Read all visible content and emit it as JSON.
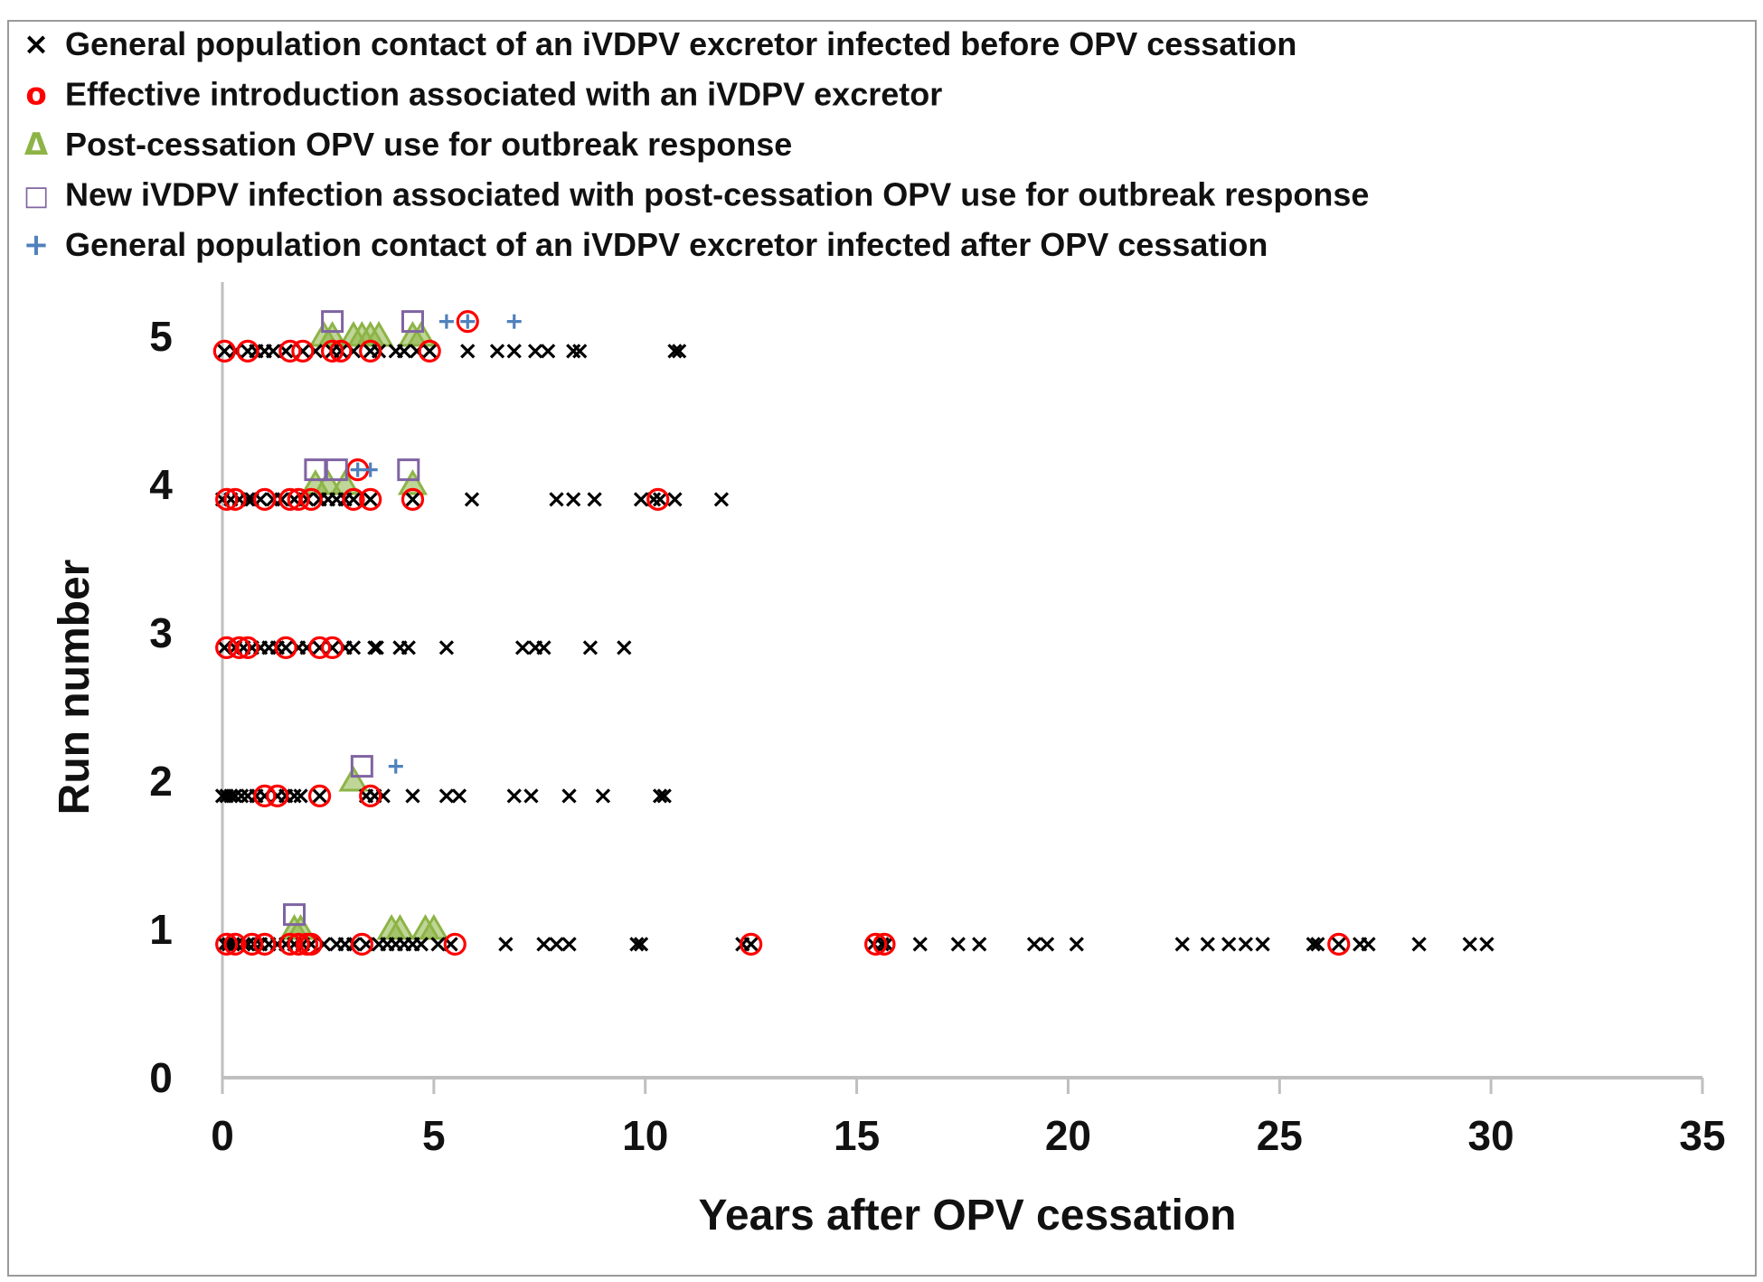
{
  "chart_data": {
    "type": "scatter",
    "title": "",
    "xlabel": "Years after OPV cessation",
    "ylabel": "Run number",
    "xlim": [
      0,
      35
    ],
    "ylim": [
      0,
      5
    ],
    "x_ticks": [
      "0",
      "5",
      "10",
      "15",
      "20",
      "25",
      "30",
      "35"
    ],
    "y_ticks": [
      "0",
      "1",
      "2",
      "3",
      "4",
      "5"
    ],
    "grid": false,
    "legend_position": "top",
    "legend": [
      {
        "key": "contact_before",
        "symbol": "×",
        "color": "#000000",
        "label": "General population contact of an iVDPV excretor infected before OPV cessation"
      },
      {
        "key": "introduction",
        "symbol": "o",
        "color": "#ff0000",
        "label": "Effective introduction associated with an iVDPV excretor"
      },
      {
        "key": "opv_use",
        "symbol": "Δ",
        "color": "#8db446",
        "label": "Post-cessation OPV use for outbreak response"
      },
      {
        "key": "new_ivdpv",
        "symbol": "□",
        "color": "#8064a2",
        "label": "New iVDPV infection associated with post-cessation OPV use for outbreak response"
      },
      {
        "key": "contact_after",
        "symbol": "+",
        "color": "#4f81bd",
        "label": "General population contact of an iVDPV excretor infected after OPV cessation"
      }
    ],
    "series": [
      {
        "name": "General population contact of an iVDPV excretor infected before OPV cessation",
        "key": "contact_before",
        "marker": "x",
        "color": "#000000",
        "points": [
          [
            0.05,
            0.9
          ],
          [
            0.15,
            0.9
          ],
          [
            0.25,
            0.9
          ],
          [
            0.35,
            0.9
          ],
          [
            0.5,
            0.9
          ],
          [
            0.6,
            0.9
          ],
          [
            0.75,
            0.9
          ],
          [
            0.9,
            0.9
          ],
          [
            1.1,
            0.9
          ],
          [
            1.3,
            0.9
          ],
          [
            1.5,
            0.9
          ],
          [
            1.7,
            0.9
          ],
          [
            1.9,
            0.9
          ],
          [
            2.1,
            0.9
          ],
          [
            2.4,
            0.9
          ],
          [
            2.7,
            0.9
          ],
          [
            2.9,
            0.9
          ],
          [
            3.1,
            0.9
          ],
          [
            3.4,
            0.9
          ],
          [
            3.7,
            0.9
          ],
          [
            3.9,
            0.9
          ],
          [
            4.1,
            0.9
          ],
          [
            4.3,
            0.9
          ],
          [
            4.5,
            0.9
          ],
          [
            4.7,
            0.9
          ],
          [
            5.1,
            0.9
          ],
          [
            5.4,
            0.9
          ],
          [
            6.7,
            0.9
          ],
          [
            7.6,
            0.9
          ],
          [
            7.9,
            0.9
          ],
          [
            8.2,
            0.9
          ],
          [
            9.8,
            0.9
          ],
          [
            9.9,
            0.9
          ],
          [
            12.3,
            0.9
          ],
          [
            12.5,
            0.9
          ],
          [
            15.4,
            0.9
          ],
          [
            15.6,
            0.9
          ],
          [
            15.7,
            0.9
          ],
          [
            16.5,
            0.9
          ],
          [
            17.4,
            0.9
          ],
          [
            17.9,
            0.9
          ],
          [
            19.2,
            0.9
          ],
          [
            19.5,
            0.9
          ],
          [
            20.2,
            0.9
          ],
          [
            22.7,
            0.9
          ],
          [
            23.3,
            0.9
          ],
          [
            23.8,
            0.9
          ],
          [
            24.2,
            0.9
          ],
          [
            24.6,
            0.9
          ],
          [
            25.8,
            0.9
          ],
          [
            25.9,
            0.9
          ],
          [
            26.4,
            0.9
          ],
          [
            26.9,
            0.9
          ],
          [
            27.1,
            0.9
          ],
          [
            28.3,
            0.9
          ],
          [
            29.5,
            0.9
          ],
          [
            29.9,
            0.9
          ],
          [
            0.0,
            1.9
          ],
          [
            0.1,
            1.9
          ],
          [
            0.2,
            1.9
          ],
          [
            0.3,
            1.9
          ],
          [
            0.45,
            1.9
          ],
          [
            0.6,
            1.9
          ],
          [
            0.8,
            1.9
          ],
          [
            1.0,
            1.9
          ],
          [
            1.3,
            1.9
          ],
          [
            1.5,
            1.9
          ],
          [
            1.7,
            1.9
          ],
          [
            1.85,
            1.9
          ],
          [
            2.3,
            1.9
          ],
          [
            3.4,
            1.9
          ],
          [
            3.6,
            1.9
          ],
          [
            3.8,
            1.9
          ],
          [
            4.5,
            1.9
          ],
          [
            5.3,
            1.9
          ],
          [
            5.6,
            1.9
          ],
          [
            6.9,
            1.9
          ],
          [
            7.3,
            1.9
          ],
          [
            8.2,
            1.9
          ],
          [
            9.0,
            1.9
          ],
          [
            10.35,
            1.9
          ],
          [
            10.45,
            1.9
          ],
          [
            0.05,
            2.9
          ],
          [
            0.3,
            2.9
          ],
          [
            0.5,
            2.9
          ],
          [
            0.7,
            2.9
          ],
          [
            0.9,
            2.9
          ],
          [
            1.1,
            2.9
          ],
          [
            1.3,
            2.9
          ],
          [
            1.5,
            2.9
          ],
          [
            1.8,
            2.9
          ],
          [
            2.0,
            2.9
          ],
          [
            2.3,
            2.9
          ],
          [
            2.6,
            2.9
          ],
          [
            2.9,
            2.9
          ],
          [
            3.1,
            2.9
          ],
          [
            3.6,
            2.9
          ],
          [
            3.65,
            2.9
          ],
          [
            4.2,
            2.9
          ],
          [
            4.4,
            2.9
          ],
          [
            5.3,
            2.9
          ],
          [
            7.1,
            2.9
          ],
          [
            7.4,
            2.9
          ],
          [
            7.6,
            2.9
          ],
          [
            8.7,
            2.9
          ],
          [
            9.5,
            2.9
          ],
          [
            0.0,
            3.9
          ],
          [
            0.2,
            3.9
          ],
          [
            0.4,
            3.9
          ],
          [
            0.6,
            3.9
          ],
          [
            0.7,
            3.9
          ],
          [
            0.9,
            3.9
          ],
          [
            1.2,
            3.9
          ],
          [
            1.4,
            3.9
          ],
          [
            1.7,
            3.9
          ],
          [
            2.0,
            3.9
          ],
          [
            2.3,
            3.9
          ],
          [
            2.5,
            3.9
          ],
          [
            2.7,
            3.9
          ],
          [
            2.9,
            3.9
          ],
          [
            3.1,
            3.9
          ],
          [
            3.5,
            3.9
          ],
          [
            4.5,
            3.9
          ],
          [
            5.9,
            3.9
          ],
          [
            7.9,
            3.9
          ],
          [
            8.3,
            3.9
          ],
          [
            8.8,
            3.9
          ],
          [
            9.9,
            3.9
          ],
          [
            10.2,
            3.9
          ],
          [
            10.35,
            3.9
          ],
          [
            10.7,
            3.9
          ],
          [
            11.8,
            3.9
          ],
          [
            0.05,
            4.9
          ],
          [
            0.3,
            4.9
          ],
          [
            0.6,
            4.9
          ],
          [
            0.8,
            4.9
          ],
          [
            1.0,
            4.9
          ],
          [
            1.2,
            4.9
          ],
          [
            1.5,
            4.9
          ],
          [
            1.9,
            4.9
          ],
          [
            2.2,
            4.9
          ],
          [
            2.6,
            4.9
          ],
          [
            2.8,
            4.9
          ],
          [
            3.1,
            4.9
          ],
          [
            3.5,
            4.9
          ],
          [
            3.7,
            4.9
          ],
          [
            4.1,
            4.9
          ],
          [
            4.3,
            4.9
          ],
          [
            4.6,
            4.9
          ],
          [
            4.9,
            4.9
          ],
          [
            5.8,
            4.9
          ],
          [
            6.5,
            4.9
          ],
          [
            6.9,
            4.9
          ],
          [
            7.4,
            4.9
          ],
          [
            7.7,
            4.9
          ],
          [
            8.3,
            4.9
          ],
          [
            8.45,
            4.9
          ],
          [
            10.7,
            4.9
          ],
          [
            10.8,
            4.9
          ]
        ]
      },
      {
        "name": "Effective introduction associated with an iVDPV excretor",
        "key": "introduction",
        "marker": "circle",
        "color": "#ff0000",
        "points": [
          [
            0.1,
            0.9
          ],
          [
            0.3,
            0.9
          ],
          [
            0.7,
            0.9
          ],
          [
            1.0,
            0.9
          ],
          [
            1.6,
            0.9
          ],
          [
            1.8,
            0.9
          ],
          [
            2.0,
            0.9
          ],
          [
            2.1,
            0.9
          ],
          [
            3.3,
            0.9
          ],
          [
            5.5,
            0.9
          ],
          [
            12.5,
            0.9
          ],
          [
            15.45,
            0.9
          ],
          [
            15.65,
            0.9
          ],
          [
            26.4,
            0.9
          ],
          [
            1.0,
            1.9
          ],
          [
            1.3,
            1.9
          ],
          [
            2.3,
            1.9
          ],
          [
            3.5,
            1.9
          ],
          [
            0.1,
            2.9
          ],
          [
            0.4,
            2.9
          ],
          [
            0.6,
            2.9
          ],
          [
            1.5,
            2.9
          ],
          [
            2.3,
            2.9
          ],
          [
            2.6,
            2.9
          ],
          [
            0.1,
            3.9
          ],
          [
            0.3,
            3.9
          ],
          [
            1.0,
            3.9
          ],
          [
            1.6,
            3.9
          ],
          [
            1.8,
            3.9
          ],
          [
            2.1,
            3.9
          ],
          [
            3.1,
            3.9
          ],
          [
            3.5,
            3.9
          ],
          [
            4.5,
            3.9
          ],
          [
            10.3,
            3.9
          ],
          [
            3.2,
            4.1
          ],
          [
            0.05,
            4.9
          ],
          [
            0.6,
            4.9
          ],
          [
            1.6,
            4.9
          ],
          [
            1.9,
            4.9
          ],
          [
            2.6,
            4.9
          ],
          [
            2.8,
            4.9
          ],
          [
            3.5,
            4.9
          ],
          [
            4.9,
            4.9
          ],
          [
            5.8,
            5.1
          ]
        ]
      },
      {
        "name": "Post-cessation OPV use for outbreak response",
        "key": "opv_use",
        "marker": "triangle",
        "color": "#8db446",
        "points": [
          [
            1.7,
            1.0
          ],
          [
            1.85,
            1.0
          ],
          [
            4.0,
            1.0
          ],
          [
            4.2,
            1.0
          ],
          [
            4.8,
            1.0
          ],
          [
            5.0,
            1.0
          ],
          [
            3.1,
            2.0
          ],
          [
            2.2,
            4.0
          ],
          [
            2.5,
            4.0
          ],
          [
            2.9,
            4.0
          ],
          [
            4.5,
            4.0
          ],
          [
            2.4,
            5.0
          ],
          [
            2.6,
            5.0
          ],
          [
            3.1,
            5.0
          ],
          [
            3.3,
            5.0
          ],
          [
            3.5,
            5.0
          ],
          [
            3.7,
            5.0
          ],
          [
            4.5,
            5.0
          ],
          [
            4.7,
            5.0
          ]
        ]
      },
      {
        "name": "New iVDPV infection associated with post-cessation OPV use for outbreak response",
        "key": "new_ivdpv",
        "marker": "square",
        "color": "#8064a2",
        "points": [
          [
            1.7,
            1.1
          ],
          [
            3.3,
            2.1
          ],
          [
            2.2,
            4.1
          ],
          [
            2.7,
            4.1
          ],
          [
            4.4,
            4.1
          ],
          [
            2.6,
            5.1
          ],
          [
            4.5,
            5.1
          ]
        ]
      },
      {
        "name": "General population contact of an iVDPV excretor infected after OPV cessation",
        "key": "contact_after",
        "marker": "plus",
        "color": "#4f81bd",
        "points": [
          [
            4.1,
            2.1
          ],
          [
            3.2,
            4.1
          ],
          [
            3.5,
            4.1
          ],
          [
            5.3,
            5.1
          ],
          [
            5.8,
            5.1
          ],
          [
            6.9,
            5.1
          ]
        ]
      }
    ]
  }
}
